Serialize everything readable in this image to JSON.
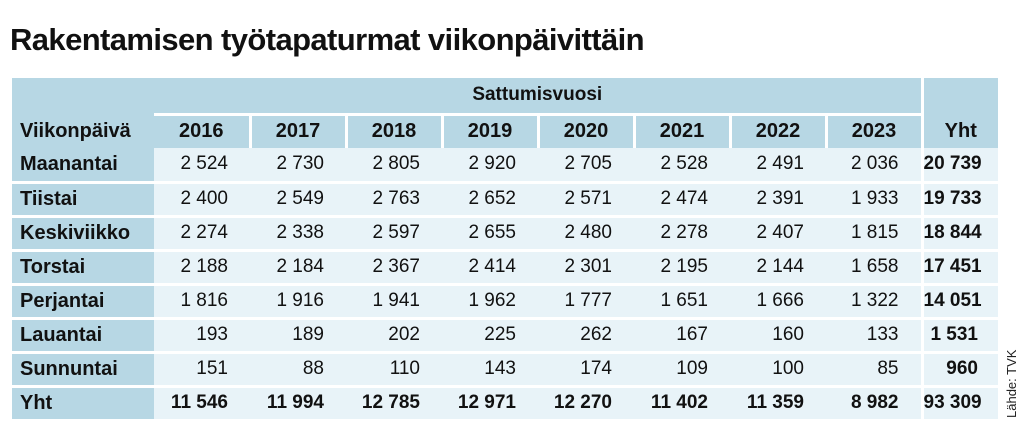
{
  "title": "Rakentamisen työtapaturmat viikonpäivittäin",
  "table": {
    "group_header": "Sattumisvuosi",
    "row_header": "Viikonpäivä",
    "total_header": "Yht",
    "years": [
      "2016",
      "2017",
      "2018",
      "2019",
      "2020",
      "2021",
      "2022",
      "2023"
    ],
    "rows": [
      {
        "label": "Maanantai",
        "values": [
          "2 524",
          "2 730",
          "2 805",
          "2 920",
          "2 705",
          "2 528",
          "2 491",
          "2 036"
        ],
        "total": "20 739"
      },
      {
        "label": "Tiistai",
        "values": [
          "2 400",
          "2 549",
          "2 763",
          "2 652",
          "2 571",
          "2 474",
          "2 391",
          "1 933"
        ],
        "total": "19 733"
      },
      {
        "label": "Keskiviikko",
        "values": [
          "2 274",
          "2 338",
          "2 597",
          "2 655",
          "2 480",
          "2 278",
          "2 407",
          "1 815"
        ],
        "total": "18 844"
      },
      {
        "label": "Torstai",
        "values": [
          "2 188",
          "2 184",
          "2 367",
          "2 414",
          "2 301",
          "2 195",
          "2 144",
          "1 658"
        ],
        "total": "17 451"
      },
      {
        "label": "Perjantai",
        "values": [
          "1 816",
          "1 916",
          "1 941",
          "1 962",
          "1 777",
          "1 651",
          "1 666",
          "1 322"
        ],
        "total": "14 051"
      },
      {
        "label": "Lauantai",
        "values": [
          "193",
          "189",
          "202",
          "225",
          "262",
          "167",
          "160",
          "133"
        ],
        "total": "1 531"
      },
      {
        "label": "Sunnuntai",
        "values": [
          "151",
          "88",
          "110",
          "143",
          "174",
          "109",
          "100",
          "85"
        ],
        "total": "960"
      }
    ],
    "total_row": {
      "label": "Yht",
      "values": [
        "11 546",
        "11 994",
        "12 785",
        "12 971",
        "12 270",
        "11 402",
        "11 359",
        "8 982"
      ],
      "total": "93 309"
    }
  },
  "source": "Lähde: TVK",
  "colors": {
    "header_fill": "#b7d7e4",
    "cell_fill": "#e8f3f8",
    "text": "#111111"
  }
}
